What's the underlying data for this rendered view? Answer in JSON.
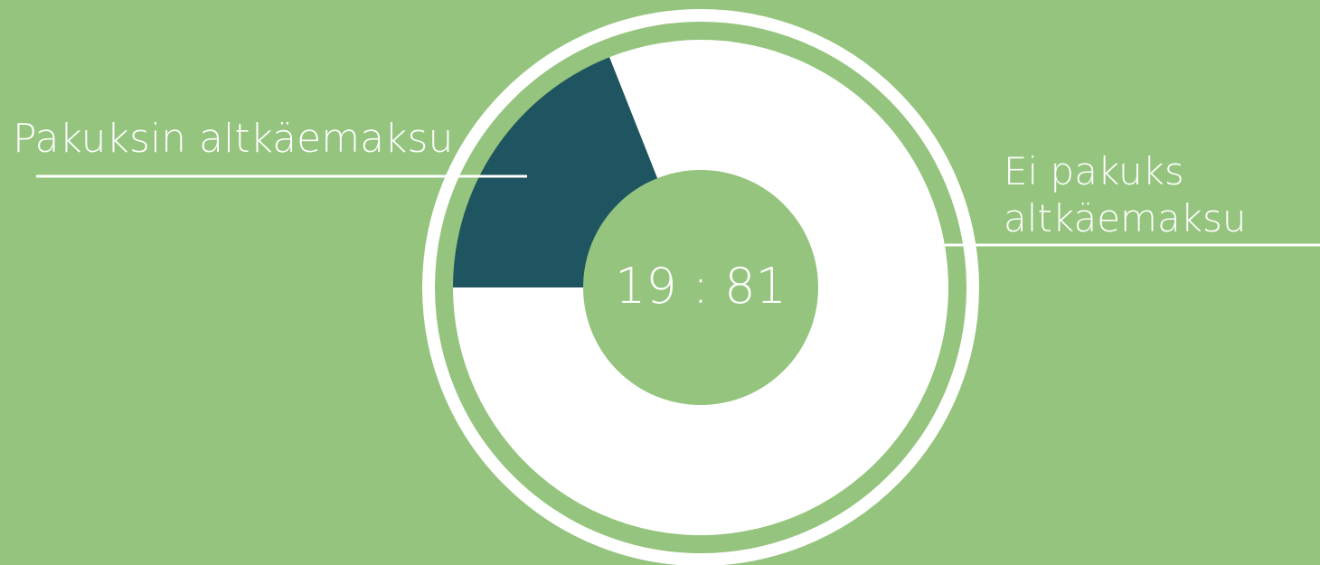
{
  "chart_data": {
    "type": "donut",
    "series": [
      {
        "name": "Pakuksin altkäemaksu",
        "color": "#1f5560",
        "values": [
          19
        ]
      },
      {
        "name": "Ei pakuks altkäemaksu",
        "color": "#ffffff",
        "values": [
          81
        ]
      }
    ],
    "center_label": "19 : 81"
  }
}
